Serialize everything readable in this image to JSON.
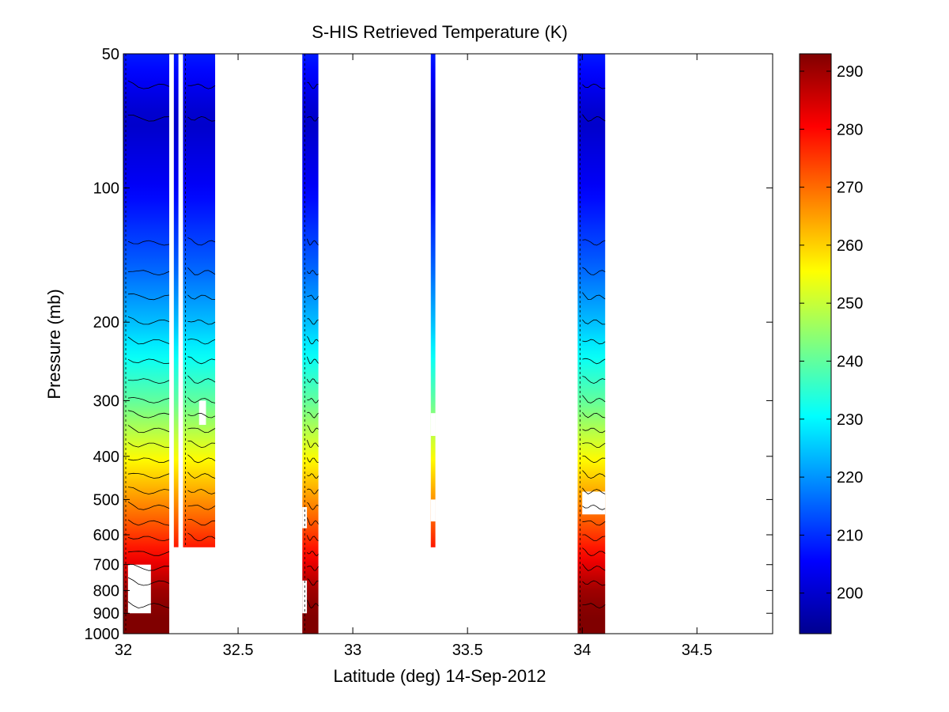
{
  "chart_data": {
    "type": "heatmap",
    "title": "S-HIS Retrieved Temperature (K)",
    "xlabel": "Latitude (deg) 14-Sep-2012",
    "ylabel": "Pressure (mb)",
    "xlim": [
      32,
      34.83
    ],
    "ylim": [
      50,
      1000
    ],
    "y_scale": "log",
    "y_reversed": true,
    "x_ticks": [
      32,
      32.5,
      33,
      33.5,
      34,
      34.5
    ],
    "x_tick_labels": [
      "32",
      "32.5",
      "33",
      "33.5",
      "34",
      "34.5"
    ],
    "y_ticks": [
      50,
      100,
      200,
      300,
      400,
      500,
      600,
      700,
      800,
      900,
      1000
    ],
    "y_tick_labels": [
      "50",
      "100",
      "200",
      "300",
      "400",
      "500",
      "600",
      "700",
      "800",
      "900",
      "1000"
    ],
    "colorbar": {
      "colormap": "jet",
      "clim": [
        193,
        293
      ],
      "ticks": [
        200,
        210,
        220,
        230,
        240,
        250,
        260,
        270,
        280,
        290
      ],
      "tick_labels": [
        "200",
        "210",
        "220",
        "230",
        "240",
        "250",
        "260",
        "270",
        "280",
        "290"
      ]
    },
    "grid": false,
    "contours": true,
    "temperature_profile": {
      "pressure": [
        50,
        70,
        100,
        150,
        200,
        300,
        400,
        500,
        600,
        700,
        800,
        900,
        1000
      ],
      "temperature": [
        208,
        200,
        205,
        215,
        224,
        240,
        255,
        266,
        275,
        283,
        290,
        293,
        293
      ]
    },
    "data_segments": [
      {
        "lat_min": 32.0,
        "lat_max": 32.2,
        "p_top": 50,
        "p_bottom": 1000
      },
      {
        "lat_min": 32.22,
        "lat_max": 32.24,
        "p_top": 50,
        "p_bottom": 640
      },
      {
        "lat_min": 32.26,
        "lat_max": 32.4,
        "p_top": 50,
        "p_bottom": 640
      },
      {
        "lat_min": 32.78,
        "lat_max": 32.85,
        "p_top": 50,
        "p_bottom": 1000
      },
      {
        "lat_min": 33.34,
        "lat_max": 33.36,
        "p_top": 50,
        "p_bottom": 640
      },
      {
        "lat_min": 33.98,
        "lat_max": 34.1,
        "p_top": 50,
        "p_bottom": 1000
      }
    ],
    "missing_regions": [
      {
        "lat_min": 32.02,
        "lat_max": 32.12,
        "p_top": 700,
        "p_bottom": 900
      },
      {
        "lat_min": 32.33,
        "lat_max": 32.36,
        "p_top": 300,
        "p_bottom": 340
      },
      {
        "lat_min": 32.26,
        "lat_max": 32.4,
        "p_top": 700,
        "p_bottom": 900
      },
      {
        "lat_min": 32.22,
        "lat_max": 32.24,
        "p_top": 640,
        "p_bottom": 1000
      },
      {
        "lat_min": 32.78,
        "lat_max": 32.8,
        "p_top": 520,
        "p_bottom": 580
      },
      {
        "lat_min": 32.78,
        "lat_max": 32.8,
        "p_top": 760,
        "p_bottom": 900
      },
      {
        "lat_min": 33.34,
        "lat_max": 33.36,
        "p_top": 320,
        "p_bottom": 360
      },
      {
        "lat_min": 33.34,
        "lat_max": 33.36,
        "p_top": 500,
        "p_bottom": 560
      },
      {
        "lat_min": 34.0,
        "lat_max": 34.1,
        "p_top": 480,
        "p_bottom": 540
      }
    ]
  }
}
